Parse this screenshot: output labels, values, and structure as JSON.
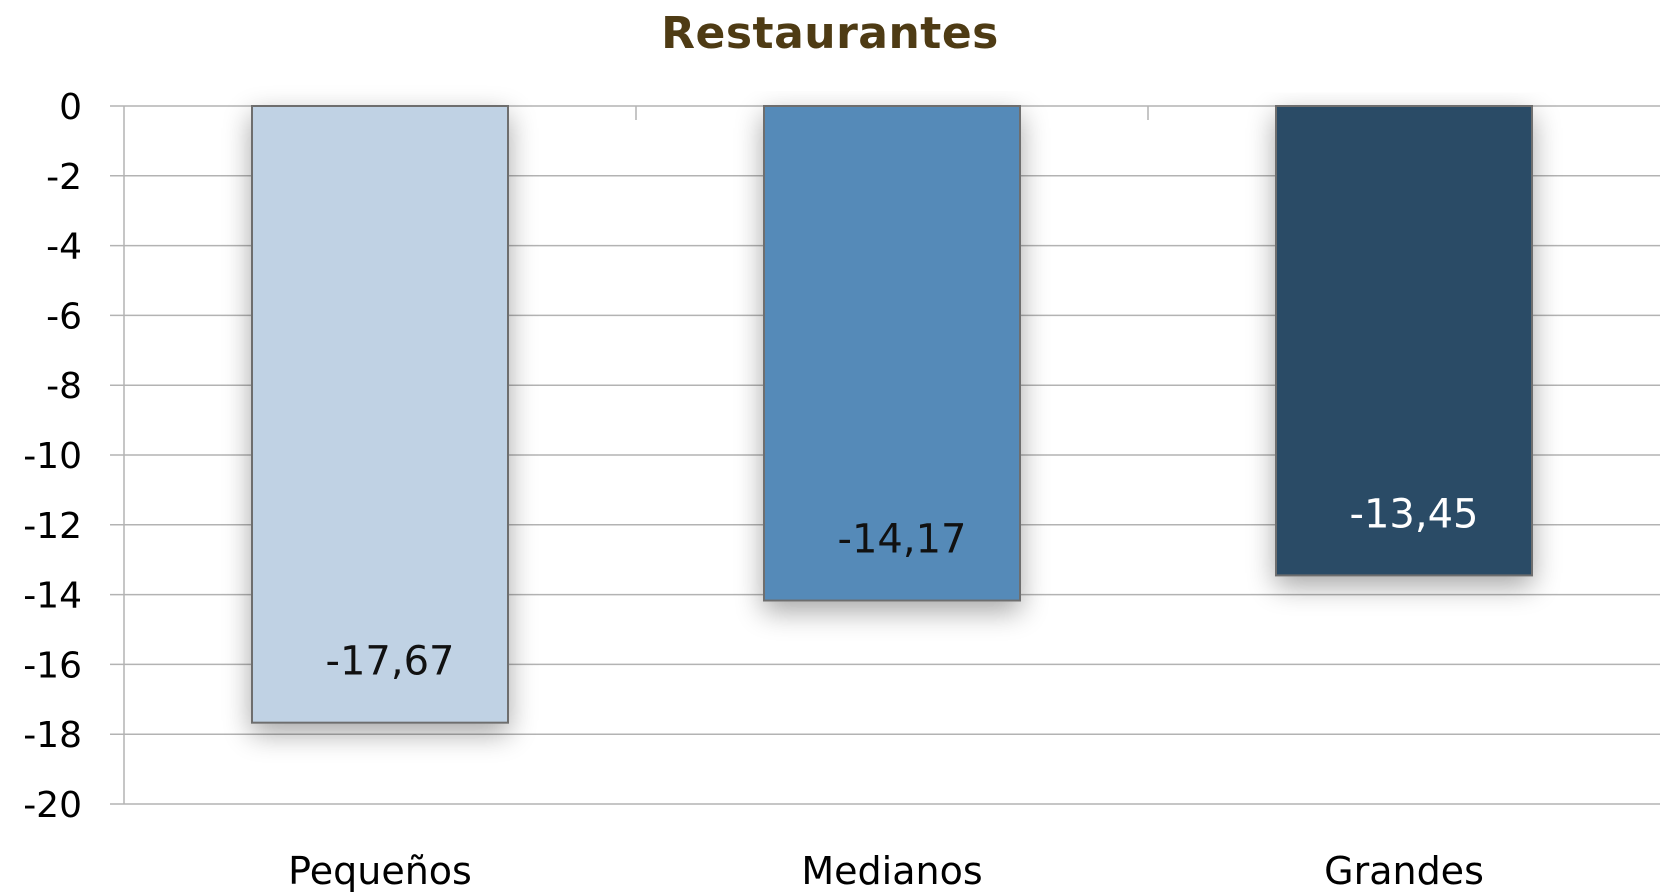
{
  "chart_data": {
    "type": "bar",
    "title": "Restaurantes",
    "categories": [
      "Pequeños",
      "Medianos",
      "Grandes"
    ],
    "values": [
      -17.67,
      -14.17,
      -13.45
    ],
    "data_labels": [
      "-17,67",
      "-14,17",
      "-13,45"
    ],
    "xlabel": "",
    "ylabel": "",
    "ylim": [
      -20,
      0
    ],
    "y_ticks": [
      0,
      -2,
      -4,
      -6,
      -8,
      -10,
      -12,
      -14,
      -16,
      -18,
      -20
    ],
    "y_tick_labels": [
      "0",
      "-2",
      "-4",
      "-6",
      "-8",
      "-10",
      "-12",
      "-14",
      "-16",
      "-18",
      "-20"
    ],
    "grid": true,
    "legend": "none",
    "colors": {
      "title": "#4e3b14",
      "bars": [
        "#c0d2e4",
        "#548ab8",
        "#2c4b66"
      ],
      "data_label_text": [
        "#111111",
        "#111111",
        "#ffffff"
      ],
      "gridline": "#b3b3b3",
      "bar_border": "#6e6e6e",
      "axis_text": "#000000"
    }
  }
}
